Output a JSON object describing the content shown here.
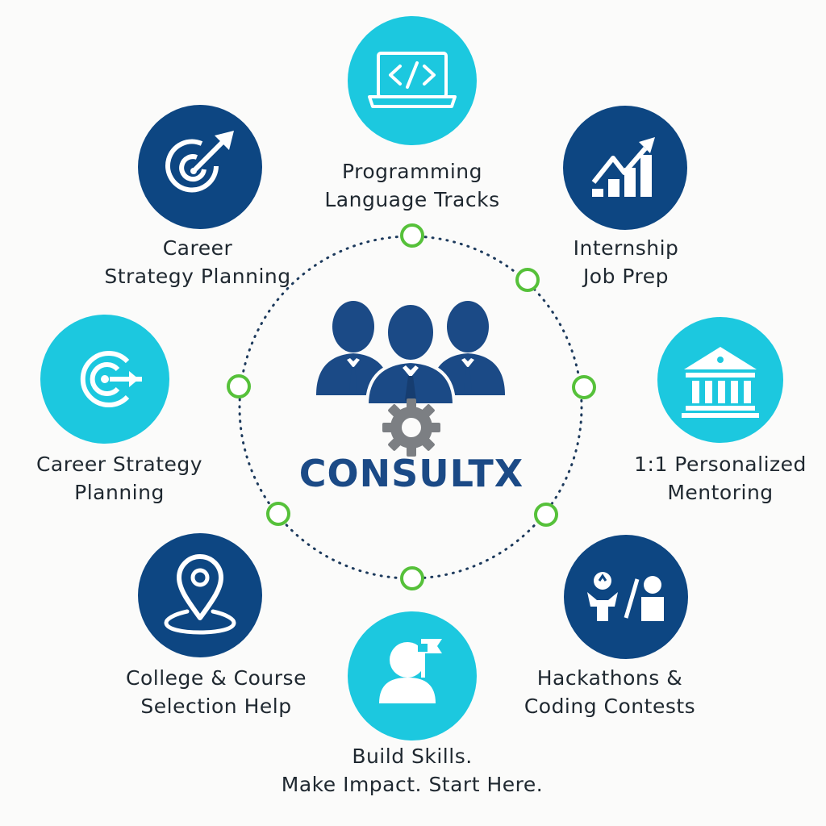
{
  "brand": {
    "name": "CONSULTX",
    "icon": "team-with-gear-icon"
  },
  "colors": {
    "navy": "#0d4682",
    "cyan": "#1cc8df",
    "node_green": "#56c13a",
    "ring_dots": "#1d3a5c",
    "gear": "#7c7f83",
    "text": "#1f2830"
  },
  "items": [
    {
      "id": "programming",
      "icon": "code-laptop-icon",
      "color": "cyan",
      "lines": [
        "Programming",
        "Language Tracks"
      ]
    },
    {
      "id": "internship",
      "icon": "growth-chart-icon",
      "color": "navy",
      "lines": [
        "Internship",
        "Job Prep"
      ]
    },
    {
      "id": "mentoring",
      "icon": "institution-icon",
      "color": "cyan",
      "lines": [
        "1:1 Personalized",
        "Mentoring"
      ]
    },
    {
      "id": "hackathons",
      "icon": "contest-people-icon",
      "color": "navy",
      "lines": [
        "Hackathons &",
        "Coding Contests"
      ]
    },
    {
      "id": "build-skills",
      "icon": "person-flag-icon",
      "color": "cyan",
      "lines": [
        "Build Skills.",
        "Make Impact. Start Here."
      ]
    },
    {
      "id": "college",
      "icon": "location-pin-icon",
      "color": "navy",
      "lines": [
        "College & Course",
        "Selection Help"
      ]
    },
    {
      "id": "career-strategy-2",
      "icon": "target-arrow-in-icon",
      "color": "cyan",
      "lines": [
        "Career Strategy",
        "Planning"
      ]
    },
    {
      "id": "career-strategy-1",
      "icon": "target-arrow-out-icon",
      "color": "navy",
      "lines": [
        "Career",
        "Strategy Planning"
      ]
    }
  ]
}
